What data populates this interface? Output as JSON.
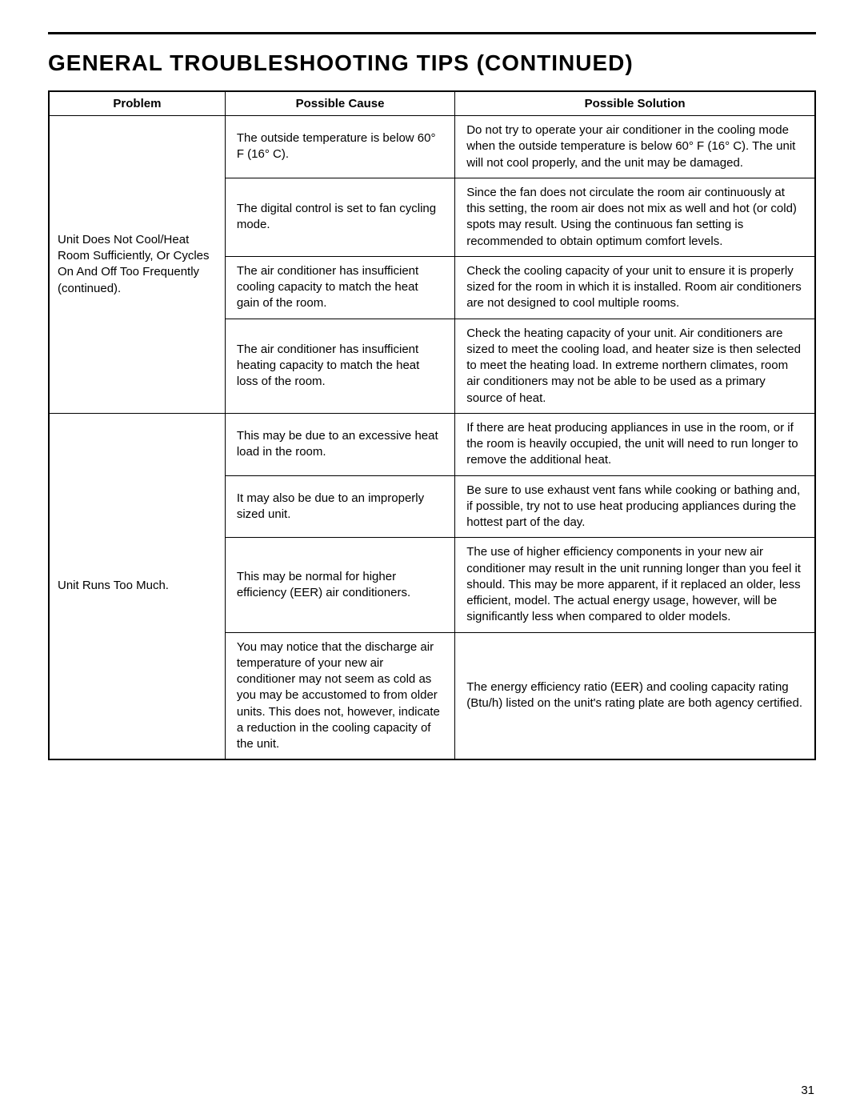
{
  "title": "General Troubleshooting Tips (Continued)",
  "page_number": "31",
  "headers": {
    "problem": "Problem",
    "cause": "Possible Cause",
    "solution": "Possible Solution"
  },
  "groups": [
    {
      "problem": "Unit Does Not Cool/Heat Room Sufficiently, Or Cycles On And Off Too Frequently (continued).",
      "rows": [
        {
          "cause": "The outside temperature is below 60° F (16° C).",
          "solution": "Do not try to operate your air conditioner in the cooling mode when the outside temperature is below 60° F (16° C).  The unit will not cool properly, and the unit may be damaged."
        },
        {
          "cause": "The digital control is set to fan cycling mode.",
          "solution": "Since the fan does not circulate the room air continuously at this setting, the room air does not  mix as well and hot (or cold) spots may result.  Using the continuous fan setting is recommended to obtain optimum comfort levels."
        },
        {
          "cause": "The air conditioner has insufficient cooling capacity to match the heat gain of the room.",
          "solution": "Check the cooling capacity of your unit to ensure it is properly sized for the room in which it is installed.  Room air conditioners are not designed to cool multiple rooms."
        },
        {
          "cause": "The air conditioner has insufficient heating capacity to match the heat loss of the room.",
          "solution": "Check the heating capacity of your unit.  Air conditioners are sized to meet the cooling load, and heater size is then selected to meet the heating load.  In extreme northern climates, room air conditioners may not be able to be used as a primary source of heat."
        }
      ]
    },
    {
      "problem": "Unit Runs Too Much.",
      "rows": [
        {
          "cause": "This may be due to an excessive heat load in the room.",
          "solution": "If there are heat producing appliances in use in the room, or if the room is heavily occupied, the unit will need to run longer to remove the additional heat."
        },
        {
          "cause": "It may also be due to an improperly sized unit.",
          "solution": "Be sure to use exhaust vent fans while cooking or bathing and, if possible, try not to use heat producing appliances during the hottest part of the day."
        },
        {
          "cause": "This may be normal for higher efficiency (EER) air conditioners.",
          "solution": "The use of higher efficiency components in your new air conditioner may result in the unit running longer than you feel it should.  This may be more apparent, if it replaced an older, less efficient, model.  The actual energy usage, however, will be significantly less when compared to older models."
        },
        {
          "cause": "You may notice that the discharge air temperature of your new air conditioner may not seem as cold as you may be accustomed to from older units.  This does not, however, indicate a reduction in the cooling capacity of the unit.",
          "solution": "The energy efficiency ratio (EER) and cooling capacity rating (Btu/h) listed on the unit's rating plate are both agency certified."
        }
      ]
    }
  ],
  "style": {
    "page_bg": "#ffffff",
    "text_color": "#000000",
    "border_color": "#000000",
    "title_fontsize": 28,
    "body_fontsize": 15,
    "header_fontsize": 15,
    "col_widths_pct": [
      23,
      30,
      47
    ]
  }
}
